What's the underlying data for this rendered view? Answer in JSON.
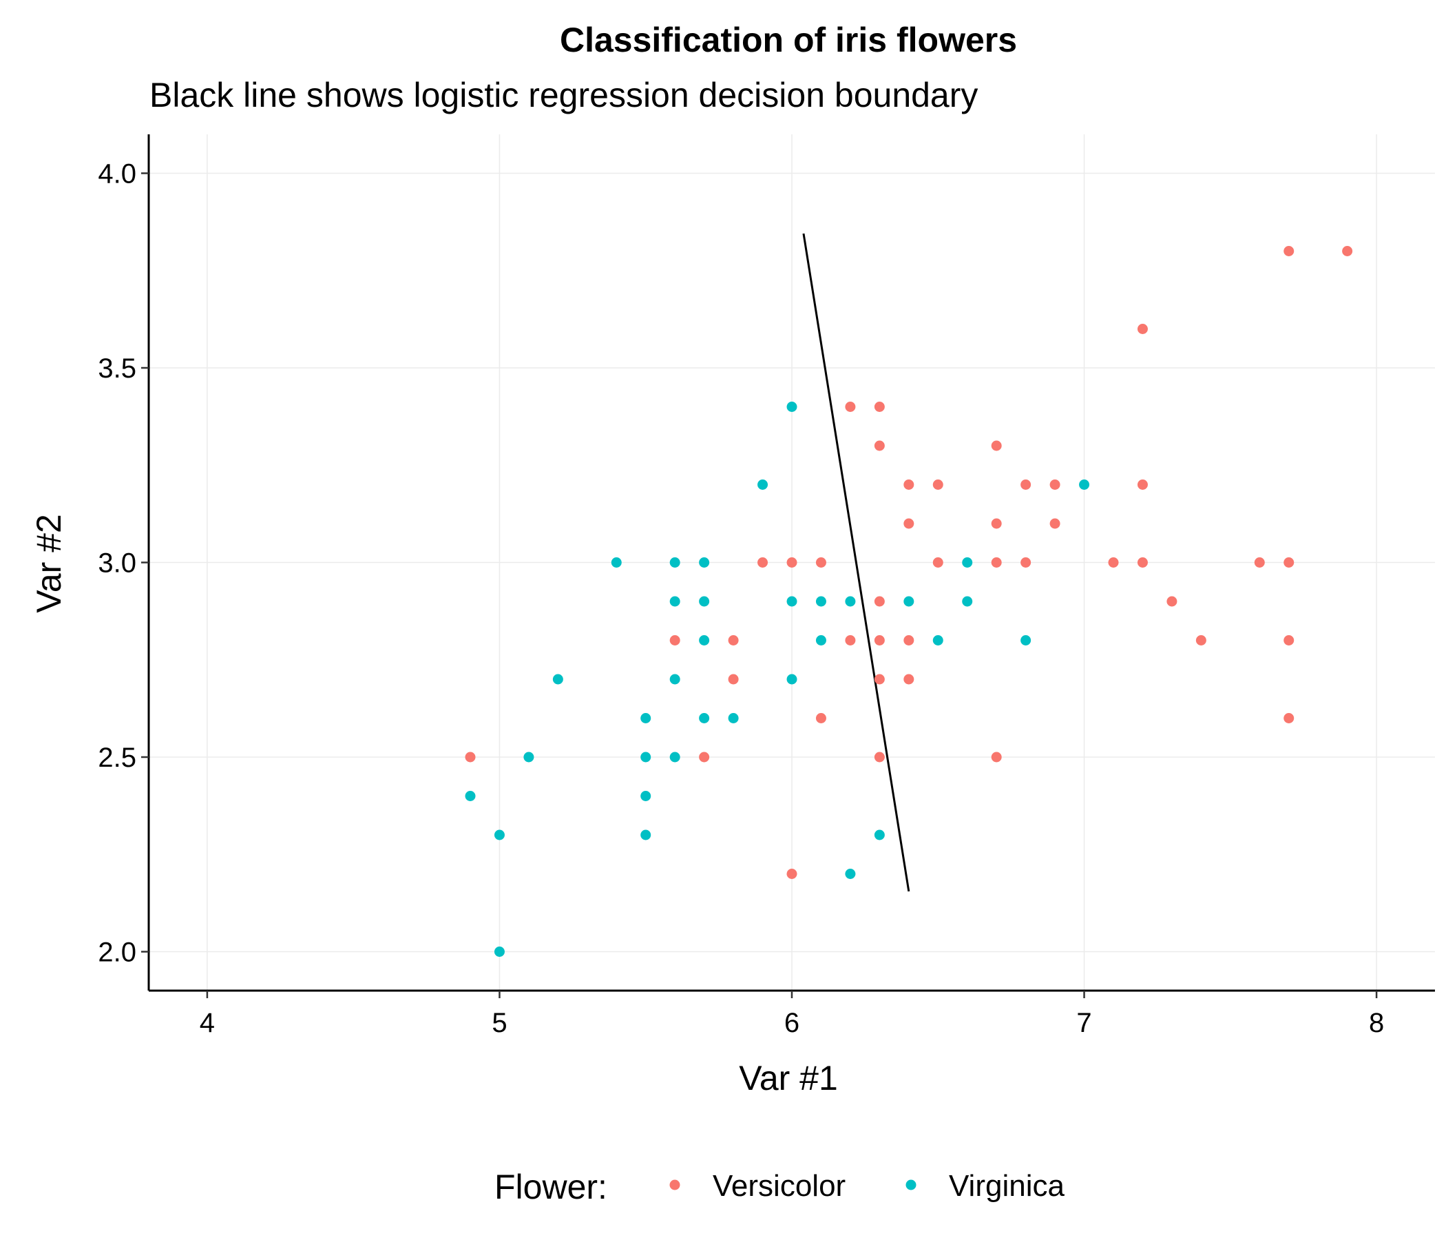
{
  "chart_data": {
    "type": "scatter",
    "title": "Classification of iris flowers",
    "subtitle": "Black line shows logistic regression decision boundary",
    "xlabel": "Var #1",
    "ylabel": "Var #2",
    "xlim": [
      3.8,
      8.2
    ],
    "ylim": [
      1.9,
      4.1
    ],
    "x_ticks": [
      4,
      5,
      6,
      7,
      8
    ],
    "y_ticks": [
      2.0,
      2.5,
      3.0,
      3.5,
      4.0
    ],
    "grid": true,
    "legend": {
      "title": "Flower:",
      "position": "bottom"
    },
    "series": [
      {
        "name": "Versicolor",
        "color": "#F8766D",
        "points": [
          [
            4.9,
            2.5
          ],
          [
            5.6,
            2.8
          ],
          [
            5.7,
            2.5
          ],
          [
            5.8,
            2.8
          ],
          [
            5.8,
            2.7
          ],
          [
            5.9,
            3.0
          ],
          [
            6.0,
            3.0
          ],
          [
            6.0,
            2.2
          ],
          [
            6.1,
            3.0
          ],
          [
            6.1,
            2.6
          ],
          [
            6.2,
            3.4
          ],
          [
            6.2,
            2.8
          ],
          [
            6.3,
            3.4
          ],
          [
            6.3,
            3.3
          ],
          [
            6.3,
            2.9
          ],
          [
            6.3,
            2.8
          ],
          [
            6.3,
            2.7
          ],
          [
            6.3,
            2.5
          ],
          [
            6.4,
            3.2
          ],
          [
            6.4,
            3.1
          ],
          [
            6.4,
            2.8
          ],
          [
            6.4,
            2.7
          ],
          [
            6.5,
            3.2
          ],
          [
            6.5,
            3.0
          ],
          [
            6.7,
            3.3
          ],
          [
            6.7,
            3.1
          ],
          [
            6.7,
            3.0
          ],
          [
            6.7,
            2.5
          ],
          [
            6.8,
            3.2
          ],
          [
            6.8,
            3.0
          ],
          [
            6.9,
            3.2
          ],
          [
            6.9,
            3.1
          ],
          [
            7.1,
            3.0
          ],
          [
            7.2,
            3.6
          ],
          [
            7.2,
            3.2
          ],
          [
            7.2,
            3.0
          ],
          [
            7.3,
            2.9
          ],
          [
            7.4,
            2.8
          ],
          [
            7.6,
            3.0
          ],
          [
            7.7,
            3.8
          ],
          [
            7.7,
            3.0
          ],
          [
            7.7,
            2.8
          ],
          [
            7.7,
            2.6
          ],
          [
            7.9,
            3.8
          ]
        ]
      },
      {
        "name": "Virginica",
        "color": "#00BFC4",
        "points": [
          [
            4.9,
            2.4
          ],
          [
            5.0,
            2.3
          ],
          [
            5.0,
            2.0
          ],
          [
            5.1,
            2.5
          ],
          [
            5.2,
            2.7
          ],
          [
            5.4,
            3.0
          ],
          [
            5.5,
            2.6
          ],
          [
            5.5,
            2.5
          ],
          [
            5.5,
            2.4
          ],
          [
            5.5,
            2.3
          ],
          [
            5.6,
            3.0
          ],
          [
            5.6,
            2.9
          ],
          [
            5.6,
            2.7
          ],
          [
            5.6,
            2.5
          ],
          [
            5.7,
            3.0
          ],
          [
            5.7,
            2.9
          ],
          [
            5.7,
            2.8
          ],
          [
            5.7,
            2.6
          ],
          [
            5.8,
            2.6
          ],
          [
            5.9,
            3.2
          ],
          [
            6.0,
            3.4
          ],
          [
            6.0,
            2.9
          ],
          [
            6.0,
            2.7
          ],
          [
            6.1,
            2.9
          ],
          [
            6.1,
            2.8
          ],
          [
            6.2,
            2.9
          ],
          [
            6.2,
            2.2
          ],
          [
            6.3,
            2.3
          ],
          [
            6.4,
            2.9
          ],
          [
            6.5,
            2.8
          ],
          [
            6.6,
            3.0
          ],
          [
            6.6,
            2.9
          ],
          [
            6.8,
            2.8
          ],
          [
            7.0,
            3.2
          ]
        ]
      }
    ],
    "decision_boundary": {
      "color": "#000000",
      "points": [
        [
          6.04,
          3.845
        ],
        [
          6.4,
          2.155
        ]
      ]
    }
  }
}
